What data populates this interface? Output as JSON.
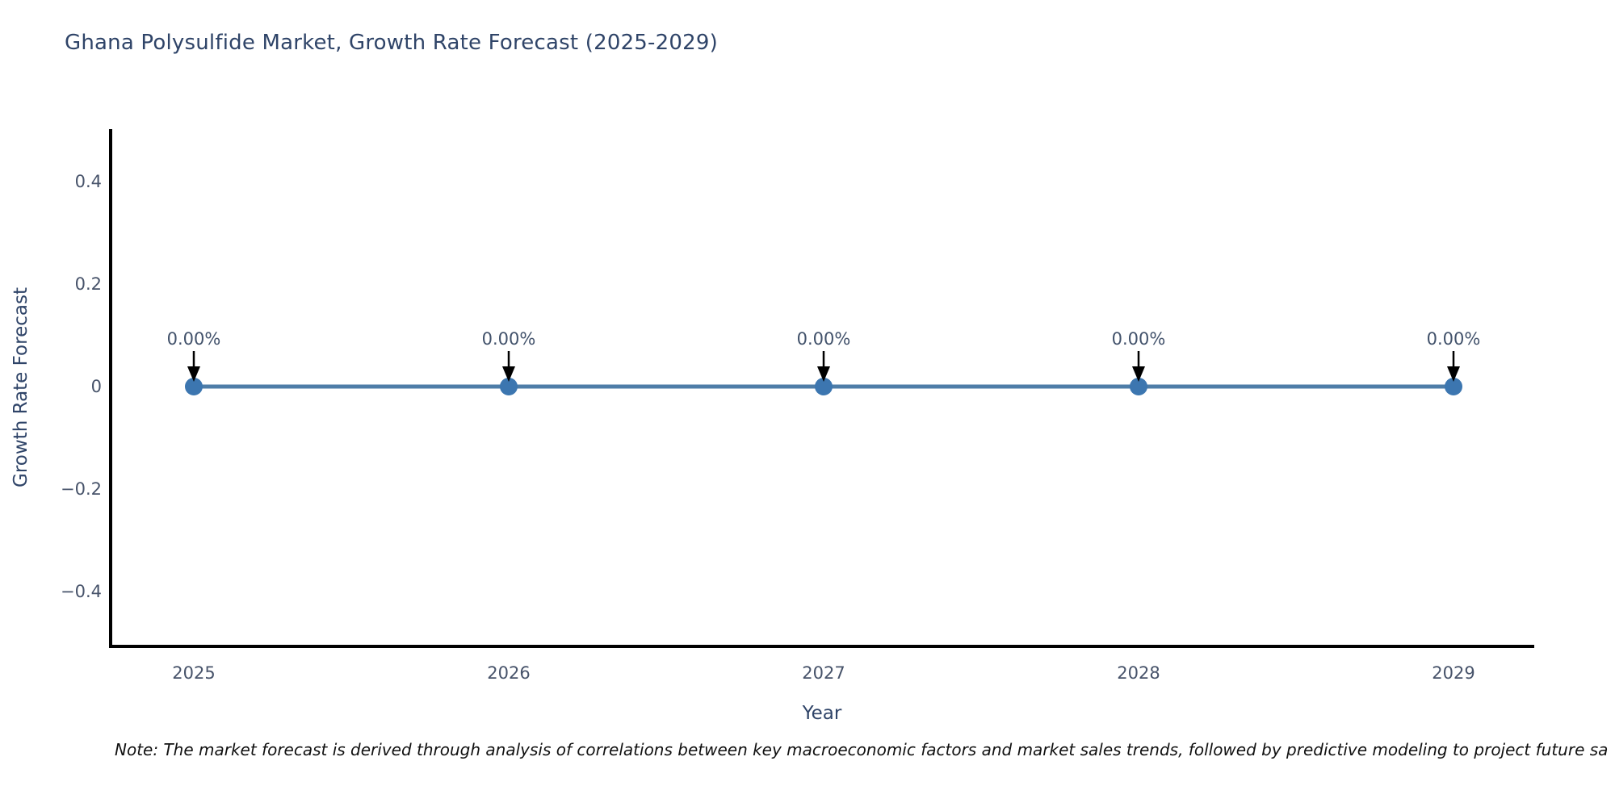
{
  "title": "Ghana Polysulfide Market, Growth Rate Forecast (2025-2029)",
  "chart_data": {
    "type": "line",
    "title": "Ghana Polysulfide Market, Growth Rate Forecast (2025-2029)",
    "xlabel": "Year",
    "ylabel": "Growth Rate Forecast",
    "x": [
      2025,
      2026,
      2027,
      2028,
      2029
    ],
    "y": [
      0,
      0,
      0,
      0,
      0
    ],
    "point_labels": [
      "0.00%",
      "0.00%",
      "0.00%",
      "0.00%",
      "0.00%"
    ],
    "xtick_labels": [
      "2025",
      "2026",
      "2027",
      "2028",
      "2029"
    ],
    "yticks": [
      0.4,
      0.2,
      0,
      -0.2,
      -0.4
    ],
    "ytick_labels": [
      "0.4",
      "0.2",
      "0",
      "−0.2",
      "−0.4"
    ],
    "xlim": [
      2025,
      2029
    ],
    "ylim": [
      -0.51,
      0.5
    ],
    "grid": false,
    "legend_position": "none",
    "colors": {
      "line": "#4e7da8",
      "marker": "#3c76b0",
      "arrow": "#000000",
      "axis": "#000000",
      "title_text": "#2f4468",
      "tick_text": "#47536a",
      "annotation_text": "#42526b"
    }
  },
  "footnote": "Note: The market forecast is derived through analysis of correlations between key macroeconomic factors and market sales trends, followed by predictive modeling to project future sa"
}
